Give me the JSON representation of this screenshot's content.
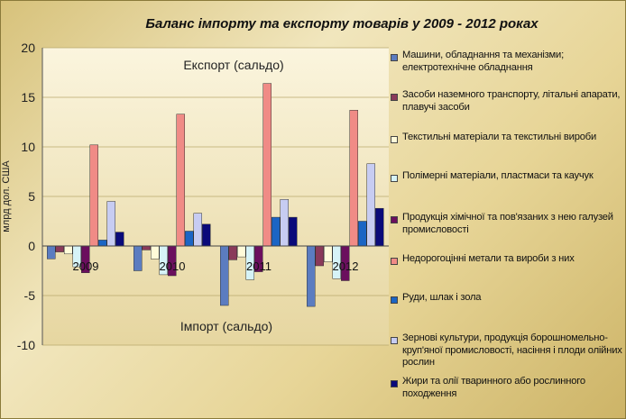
{
  "chart_data": {
    "type": "bar",
    "title": "Баланс імпорту та експорту товарів у 2009 - 2012 роках",
    "ylabel": "млрд дол. США",
    "ylim": [
      -10,
      20
    ],
    "yticks": [
      "20",
      "15",
      "10",
      "5",
      "0",
      "-5",
      "-10"
    ],
    "categories": [
      "2009",
      "2010",
      "2011",
      "2012"
    ],
    "annotations": {
      "export": "Експорт (сальдо)",
      "import": "Імпорт (сальдо)"
    },
    "series": [
      {
        "name": "Машини, обладнання та механізми; електротехнічне обладнання",
        "color": "#5b7cc0",
        "values": [
          -1.3,
          -2.5,
          -6.0,
          -6.1
        ]
      },
      {
        "name": "Засоби наземного транспорту, літальні апарати, плавучі засоби",
        "color": "#8a3a5a",
        "values": [
          -0.6,
          -0.4,
          -1.4,
          -2.0
        ]
      },
      {
        "name": "Текстильні матеріали та текстильні вироби",
        "color": "#fffbd9",
        "values": [
          -0.8,
          -1.3,
          -1.1,
          -1.6
        ]
      },
      {
        "name": "Полімерні матеріали, пластмаси та каучук",
        "color": "#d6f3f7",
        "values": [
          -2.1,
          -2.9,
          -3.4,
          -3.3
        ]
      },
      {
        "name": "Продукція хімічної та пов'язаних з нею галузей промисловості",
        "color": "#6b0f5e",
        "values": [
          -2.7,
          -3.0,
          -2.6,
          -3.5
        ]
      },
      {
        "name": "Недорогоцінні метали та вироби з них",
        "color": "#f08b86",
        "values": [
          10.2,
          13.3,
          16.4,
          13.7
        ]
      },
      {
        "name": "Руди, шлак і зола",
        "color": "#1b65c4",
        "values": [
          0.6,
          1.5,
          2.9,
          2.5
        ]
      },
      {
        "name": "Зернові культури, продукція борошномельно-круп'яної промисловості, насіння і плоди олійних рослин",
        "color": "#c7ccf2",
        "values": [
          4.5,
          3.3,
          4.7,
          8.3
        ]
      },
      {
        "name": "Жири та олії тваринного або рослинного походження",
        "color": "#0a0a7a",
        "values": [
          1.4,
          2.2,
          2.9,
          3.8
        ]
      }
    ]
  }
}
